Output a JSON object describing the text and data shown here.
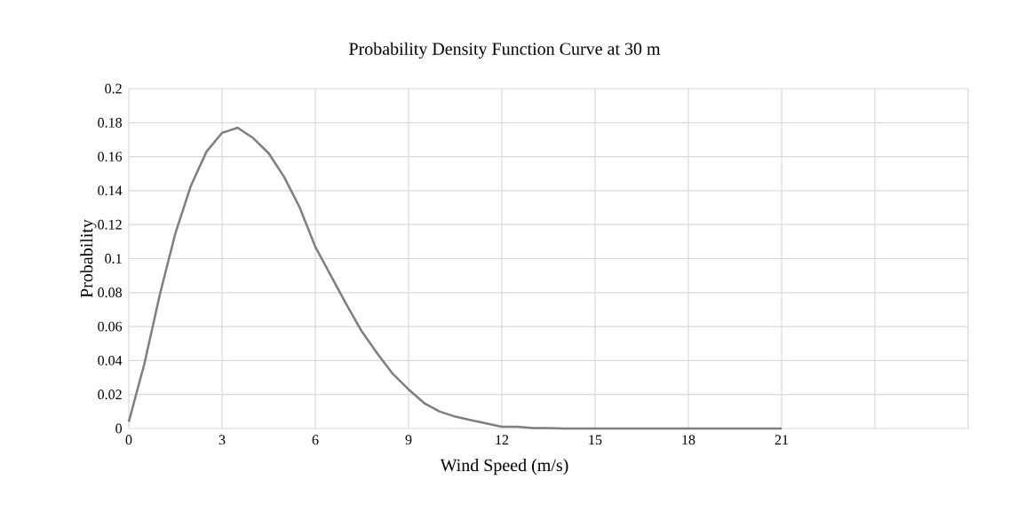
{
  "chart_data": {
    "type": "line",
    "title": "Probability Density Function Curve at 30 m",
    "xlabel": "Wind Speed (m/s)",
    "ylabel": "Probability",
    "x": [
      0,
      0.5,
      1,
      1.5,
      2,
      2.5,
      3,
      3.5,
      4,
      4.5,
      5,
      5.5,
      6,
      6.5,
      7,
      7.5,
      8,
      8.5,
      9,
      9.5,
      10,
      10.5,
      11,
      11.5,
      12,
      12.5,
      13,
      13.5,
      14,
      14.5,
      15,
      15.5,
      16,
      16.5,
      17,
      17.5,
      18,
      18.5,
      19,
      19.5,
      20,
      20.5,
      21
    ],
    "series": [
      {
        "color": "#7f7f7f",
        "values": [
          0.004,
          0.038,
          0.079,
          0.115,
          0.143,
          0.163,
          0.174,
          0.177,
          0.171,
          0.162,
          0.148,
          0.13,
          0.107,
          0.09,
          0.073,
          0.057,
          0.044,
          0.032,
          0.023,
          0.015,
          0.01,
          0.007,
          0.005,
          0.003,
          0.001,
          0.001,
          0.0003,
          0.0003,
          0,
          0,
          0,
          0,
          0,
          0,
          0,
          0,
          0,
          0,
          0,
          0,
          0,
          0,
          0
        ]
      }
    ],
    "xlim": [
      0,
      27
    ],
    "ylim": [
      0,
      0.2
    ],
    "xticks": [
      0,
      3,
      6,
      9,
      12,
      15,
      18,
      21,
      {
        "value": 24,
        "label": null
      },
      {
        "value": 27,
        "label": null
      }
    ],
    "yticks": [
      0,
      0.02,
      0.04,
      0.06,
      0.08,
      0.1,
      0.12,
      0.14,
      0.16,
      0.18,
      0.2
    ],
    "grid": true,
    "marker": "none",
    "line_style": "solid"
  }
}
